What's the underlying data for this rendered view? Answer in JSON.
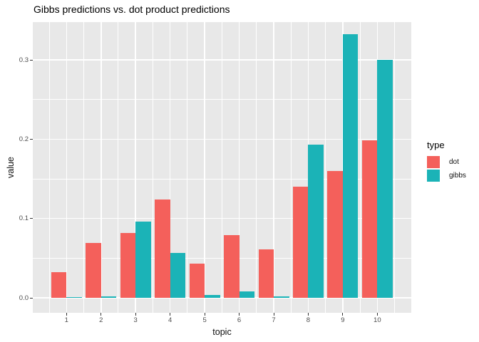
{
  "title": "Gibbs predictions vs. dot product predictions",
  "chart_data": {
    "type": "bar",
    "title": "Gibbs predictions vs. dot product predictions",
    "xlabel": "topic",
    "ylabel": "value",
    "categories": [
      "1",
      "2",
      "3",
      "4",
      "5",
      "6",
      "7",
      "8",
      "9",
      "10"
    ],
    "series": [
      {
        "name": "dot",
        "color": "#F4605B",
        "values": [
          0.032,
          0.069,
          0.082,
          0.124,
          0.043,
          0.079,
          0.061,
          0.14,
          0.16,
          0.199
        ]
      },
      {
        "name": "gibbs",
        "color": "#1BB3B7",
        "values": [
          0.001,
          0.002,
          0.096,
          0.057,
          0.004,
          0.008,
          0.002,
          0.193,
          0.332,
          0.3
        ]
      }
    ],
    "y_ticks": [
      0.0,
      0.1,
      0.2,
      0.3
    ],
    "y_tick_labels": [
      "0.0",
      "0.1",
      "0.2",
      "0.3"
    ],
    "ylim": [
      -0.017,
      0.349
    ],
    "grid": true,
    "legend": {
      "title": "type",
      "position": "right"
    },
    "colors": {
      "panel_bg": "#E8E8E8",
      "grid": "#FFFFFF",
      "tick_text": "#4D4D4D",
      "axis_title": "#111111"
    }
  }
}
